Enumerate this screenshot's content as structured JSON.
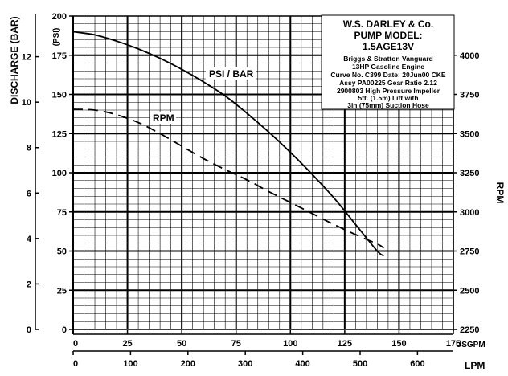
{
  "chart_data": {
    "type": "line",
    "x_usgpm": {
      "min": 0,
      "max": 175,
      "ticks": [
        0,
        25,
        50,
        75,
        100,
        125,
        150,
        175
      ],
      "unit": "USGPM"
    },
    "x_lpm": {
      "ticks": [
        0,
        100,
        200,
        300,
        400,
        500,
        600
      ],
      "unit": "LPM"
    },
    "y_psi": {
      "min": 0,
      "max": 200,
      "ticks": [
        0,
        25,
        50,
        75,
        100,
        125,
        150,
        175,
        200
      ],
      "label": "(PSI)"
    },
    "y_bar": {
      "ticks": [
        0,
        2,
        4,
        6,
        8,
        10,
        12
      ],
      "label": "DISCHARGE (BAR)"
    },
    "y_rpm": {
      "min": 2250,
      "max": 4250,
      "ticks": [
        2250,
        2500,
        2750,
        3000,
        3250,
        3500,
        3750,
        4000
      ],
      "label": "RPM"
    },
    "grid": true,
    "series": [
      {
        "name": "PSI / BAR",
        "axis": "psi",
        "style": "solid",
        "x": [
          0,
          10,
          20,
          30,
          40,
          50,
          60,
          70,
          80,
          90,
          100,
          110,
          120,
          130,
          140,
          143
        ],
        "y": [
          190,
          188,
          184,
          179,
          173,
          166,
          158,
          149,
          138,
          126,
          113,
          99,
          84,
          67,
          50,
          47
        ]
      },
      {
        "name": "RPM",
        "axis": "rpm",
        "style": "dashed",
        "x": [
          0,
          10,
          20,
          30,
          40,
          50,
          60,
          70,
          80,
          90,
          100,
          110,
          120,
          130,
          140,
          143
        ],
        "y": [
          3655,
          3650,
          3620,
          3570,
          3500,
          3420,
          3340,
          3270,
          3205,
          3130,
          3060,
          2990,
          2920,
          2855,
          2795,
          2770
        ]
      }
    ],
    "info_box": {
      "title": "W.S. DARLEY & Co.",
      "model_label": "PUMP MODEL:",
      "model": "1.5AGE13V",
      "lines": [
        "Briggs & Stratton Vanguard",
        "13HP Gasoline Engine",
        "Curve No. C399 Date: 20Jun00 CKE",
        "Assy PA00225 Gear Ratio 2.12",
        "2900803 High Pressure Impeller",
        "5ft. (1.5m) Lift with",
        "3in (75mm) Suction Hose"
      ]
    }
  }
}
